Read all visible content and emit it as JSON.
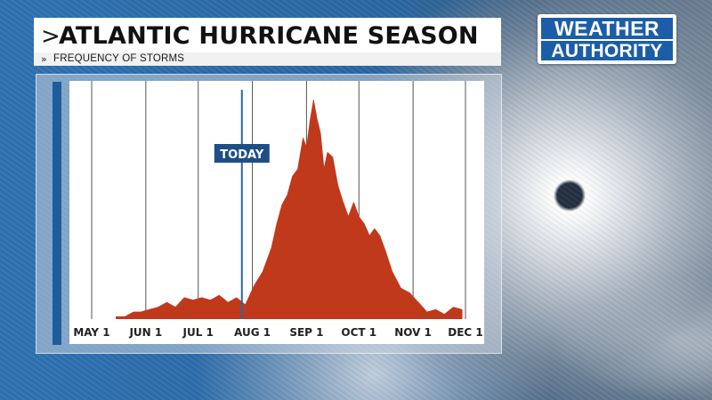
{
  "header": {
    "title": "ATLANTIC HURRICANE SEASON",
    "title_chevron": ">",
    "subtitle": "FREQUENCY OF STORMS",
    "subtitle_chevron": "»"
  },
  "logo": {
    "line1": "WEATHER",
    "line2": "AUTHORITY"
  },
  "colors": {
    "accent_blue": "#1f5c9c",
    "area_fill": "#c0391b",
    "today_line": "#2b66a3",
    "grid": "#555555"
  },
  "chart_data": {
    "type": "area",
    "title": "",
    "xlabel": "",
    "ylabel": "",
    "x_ticks": [
      "MAY 1",
      "JUN 1",
      "JUL 1",
      "AUG 1",
      "SEP 1",
      "OCT 1",
      "NOV 1",
      "DEC 1"
    ],
    "x_range": [
      "2024-05-01",
      "2024-12-01"
    ],
    "ylim": [
      0,
      100
    ],
    "grid": "vertical",
    "annotation": {
      "label": "TODAY",
      "x": "2024-07-26"
    },
    "series": [
      {
        "x": [
          "2024-05-15",
          "2024-05-20",
          "2024-05-25",
          "2024-05-29",
          "2024-06-03",
          "2024-06-08",
          "2024-06-13",
          "2024-06-18",
          "2024-06-23",
          "2024-06-28",
          "2024-07-03",
          "2024-07-08",
          "2024-07-13",
          "2024-07-18",
          "2024-07-23",
          "2024-07-28",
          "2024-08-02",
          "2024-08-07",
          "2024-08-12",
          "2024-08-15",
          "2024-08-18",
          "2024-08-21",
          "2024-08-24",
          "2024-08-27",
          "2024-08-30",
          "2024-09-01",
          "2024-09-03",
          "2024-09-05",
          "2024-09-07",
          "2024-09-09",
          "2024-09-11",
          "2024-09-13",
          "2024-09-16",
          "2024-09-19",
          "2024-09-22",
          "2024-09-25",
          "2024-09-28",
          "2024-10-01",
          "2024-10-04",
          "2024-10-07",
          "2024-10-10",
          "2024-10-13",
          "2024-10-16",
          "2024-10-20",
          "2024-10-25",
          "2024-10-30",
          "2024-11-04",
          "2024-11-09",
          "2024-11-14",
          "2024-11-19",
          "2024-11-24",
          "2024-11-29"
        ],
        "values": [
          1,
          1,
          3,
          3,
          4,
          5,
          7,
          5,
          9,
          8,
          9,
          8,
          10,
          7,
          9,
          6,
          14,
          20,
          30,
          40,
          48,
          52,
          60,
          63,
          76,
          72,
          83,
          92,
          84,
          78,
          63,
          70,
          68,
          56,
          49,
          43,
          49,
          43,
          40,
          35,
          38,
          35,
          29,
          20,
          13,
          11,
          7,
          3,
          4,
          2,
          5,
          4
        ]
      }
    ]
  }
}
